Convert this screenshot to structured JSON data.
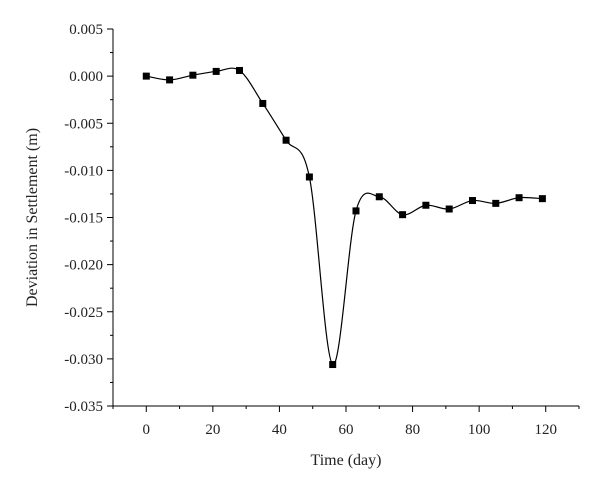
{
  "chart_data": {
    "type": "line",
    "xlabel": "Time (day)",
    "ylabel": "Deviation in Settlement (m)",
    "xlim": [
      -10,
      130
    ],
    "ylim": [
      -0.035,
      0.005
    ],
    "x_ticks": [
      0,
      20,
      40,
      60,
      80,
      100,
      120
    ],
    "x_tick_labels": [
      "0",
      "20",
      "40",
      "60",
      "80",
      "100",
      "120"
    ],
    "y_ticks": [
      0.005,
      0.0,
      -0.005,
      -0.01,
      -0.015,
      -0.02,
      -0.025,
      -0.03,
      -0.035
    ],
    "y_tick_labels": [
      "0.005",
      "0.000",
      "-0.005",
      "-0.010",
      "-0.015",
      "-0.020",
      "-0.025",
      "-0.030",
      "-0.035"
    ],
    "grid": false,
    "legend": "none",
    "marker": "square",
    "smoothed_line": true,
    "series": [
      {
        "x": [
          0,
          7,
          14,
          21,
          28,
          35,
          42,
          49,
          56,
          63,
          70,
          77,
          84,
          91,
          98,
          105,
          112,
          119
        ],
        "y": [
          0.0,
          -0.0004,
          0.0001,
          0.0005,
          0.0006,
          -0.0029,
          -0.0068,
          -0.0107,
          -0.0306,
          -0.0143,
          -0.0128,
          -0.0147,
          -0.0137,
          -0.0141,
          -0.0132,
          -0.0135,
          -0.0129,
          -0.013
        ],
        "color": "#000000"
      }
    ]
  }
}
